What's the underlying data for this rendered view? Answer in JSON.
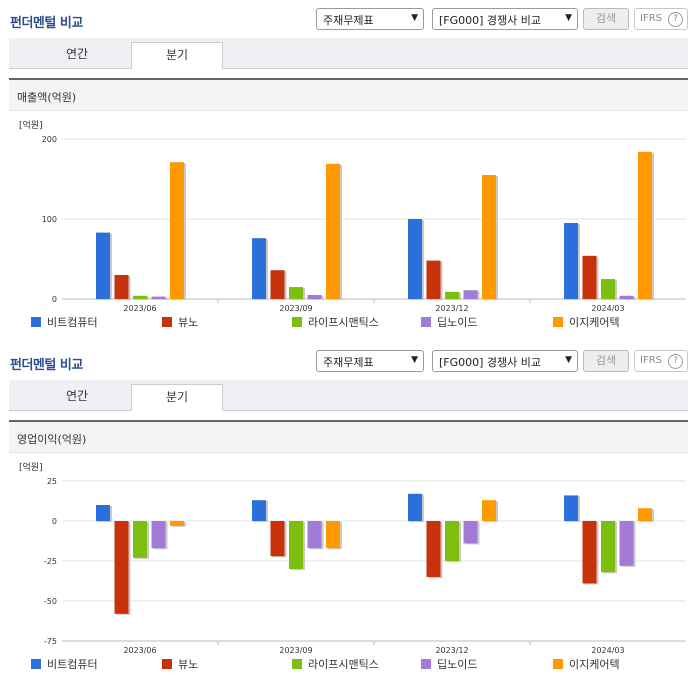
{
  "panels": [
    {
      "title": "펀더멘털 비교",
      "filter_select": "주재무제표",
      "compare_select": "[FG000] 경쟁사 비교",
      "search_label": "검색",
      "ifrs_label": "IFRS",
      "help_glyph": "?",
      "tabs": [
        "연간",
        "분기"
      ],
      "active_tab": "분기",
      "section_title": "매출액(억원)",
      "unit_label": "[억원]"
    },
    {
      "title": "펀더멘털 비교",
      "filter_select": "주재무제표",
      "compare_select": "[FG000] 경쟁사 비교",
      "search_label": "검색",
      "ifrs_label": "IFRS",
      "help_glyph": "?",
      "tabs": [
        "연간",
        "분기"
      ],
      "active_tab": "분기",
      "section_title": "영업이익(억원)",
      "unit_label": "[억원]"
    }
  ],
  "chart_data": [
    {
      "type": "bar",
      "title": "매출액(억원)",
      "ylabel": "[억원]",
      "ylim": [
        0,
        200
      ],
      "yticks": [
        0,
        100,
        200
      ],
      "categories": [
        "2023/06",
        "2023/09",
        "2023/12",
        "2024/03"
      ],
      "series": [
        {
          "name": "비트컴퓨터",
          "color": "#2b6fdb",
          "values": [
            83,
            76,
            100,
            95
          ]
        },
        {
          "name": "뷰노",
          "color": "#c8320a",
          "values": [
            30,
            36,
            48,
            54
          ]
        },
        {
          "name": "라이프시맨틱스",
          "color": "#7cbf0e",
          "values": [
            4,
            15,
            9,
            25
          ]
        },
        {
          "name": "딥노이드",
          "color": "#a27bd6",
          "values": [
            3,
            5,
            11,
            4
          ]
        },
        {
          "name": "이지케어텍",
          "color": "#ff9900",
          "values": [
            171,
            169,
            155,
            184
          ]
        }
      ],
      "legend": "bottom",
      "grid": true
    },
    {
      "type": "bar",
      "title": "영업이익(억원)",
      "ylabel": "[억원]",
      "ylim": [
        -75,
        25
      ],
      "yticks": [
        25,
        0,
        -25,
        -50,
        -75
      ],
      "categories": [
        "2023/06",
        "2023/09",
        "2023/12",
        "2024/03"
      ],
      "series": [
        {
          "name": "비트컴퓨터",
          "color": "#2b6fdb",
          "values": [
            10,
            13,
            17,
            16
          ]
        },
        {
          "name": "뷰노",
          "color": "#c8320a",
          "values": [
            -58,
            -22,
            -35,
            -39
          ]
        },
        {
          "name": "라이프시맨틱스",
          "color": "#7cbf0e",
          "values": [
            -23,
            -30,
            -25,
            -32
          ]
        },
        {
          "name": "딥노이드",
          "color": "#a27bd6",
          "values": [
            -17,
            -17,
            -14,
            -28
          ]
        },
        {
          "name": "이지케어텍",
          "color": "#ff9900",
          "values": [
            -3,
            -17,
            13,
            8
          ]
        }
      ],
      "legend": "bottom",
      "grid": true
    }
  ]
}
